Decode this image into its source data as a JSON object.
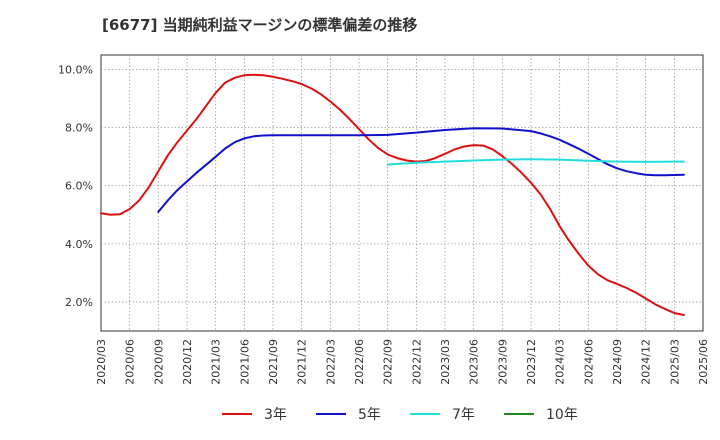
{
  "title": "[6677]  当期純利益マージンの標準偏差の推移",
  "chart_data": {
    "type": "line",
    "title": "[6677]  当期純利益マージンの標準偏差の推移",
    "xlabel": "",
    "ylabel": "",
    "x_ticks": [
      "2020/03",
      "2020/06",
      "2020/09",
      "2020/12",
      "2021/03",
      "2021/06",
      "2021/09",
      "2021/12",
      "2022/03",
      "2022/06",
      "2022/09",
      "2022/12",
      "2023/03",
      "2023/06",
      "2023/09",
      "2023/12",
      "2024/03",
      "2024/06",
      "2024/09",
      "2024/12",
      "2025/03",
      "2025/06"
    ],
    "y_ticks": [
      "2.0%",
      "4.0%",
      "6.0%",
      "8.0%",
      "10.0%"
    ],
    "ylim": [
      1.0,
      10.5
    ],
    "grid": true,
    "legend_position": "bottom",
    "series": [
      {
        "name": "3年",
        "color": "#dd1111",
        "points": [
          [
            "2020/03",
            5.05
          ],
          [
            "2020/04",
            5.0
          ],
          [
            "2020/05",
            5.02
          ],
          [
            "2020/06",
            5.2
          ],
          [
            "2020/07",
            5.5
          ],
          [
            "2020/08",
            5.95
          ],
          [
            "2020/09",
            6.5
          ],
          [
            "2020/10",
            7.05
          ],
          [
            "2020/11",
            7.5
          ],
          [
            "2020/12",
            7.9
          ],
          [
            "2021/01",
            8.3
          ],
          [
            "2021/02",
            8.75
          ],
          [
            "2021/03",
            9.2
          ],
          [
            "2021/04",
            9.55
          ],
          [
            "2021/05",
            9.72
          ],
          [
            "2021/06",
            9.8
          ],
          [
            "2021/07",
            9.82
          ],
          [
            "2021/08",
            9.8
          ],
          [
            "2021/09",
            9.75
          ],
          [
            "2021/10",
            9.68
          ],
          [
            "2021/11",
            9.6
          ],
          [
            "2021/12",
            9.5
          ],
          [
            "2022/01",
            9.35
          ],
          [
            "2022/02",
            9.15
          ],
          [
            "2022/03",
            8.9
          ],
          [
            "2022/04",
            8.62
          ],
          [
            "2022/05",
            8.3
          ],
          [
            "2022/06",
            7.95
          ],
          [
            "2022/07",
            7.6
          ],
          [
            "2022/08",
            7.3
          ],
          [
            "2022/09",
            7.08
          ],
          [
            "2022/10",
            6.95
          ],
          [
            "2022/11",
            6.87
          ],
          [
            "2022/12",
            6.83
          ],
          [
            "2023/01",
            6.85
          ],
          [
            "2023/02",
            6.95
          ],
          [
            "2023/03",
            7.1
          ],
          [
            "2023/04",
            7.25
          ],
          [
            "2023/05",
            7.35
          ],
          [
            "2023/06",
            7.4
          ],
          [
            "2023/07",
            7.38
          ],
          [
            "2023/08",
            7.25
          ],
          [
            "2023/09",
            7.02
          ],
          [
            "2023/10",
            6.75
          ],
          [
            "2023/11",
            6.45
          ],
          [
            "2023/12",
            6.1
          ],
          [
            "2024/01",
            5.7
          ],
          [
            "2024/02",
            5.2
          ],
          [
            "2024/03",
            4.6
          ],
          [
            "2024/04",
            4.1
          ],
          [
            "2024/05",
            3.65
          ],
          [
            "2024/06",
            3.25
          ],
          [
            "2024/07",
            2.95
          ],
          [
            "2024/08",
            2.75
          ],
          [
            "2024/09",
            2.62
          ],
          [
            "2024/10",
            2.48
          ],
          [
            "2024/11",
            2.32
          ],
          [
            "2024/12",
            2.12
          ],
          [
            "2025/01",
            1.92
          ],
          [
            "2025/02",
            1.76
          ],
          [
            "2025/03",
            1.62
          ],
          [
            "2025/04",
            1.55
          ]
        ]
      },
      {
        "name": "5年",
        "color": "#1111cc",
        "points": [
          [
            "2020/09",
            5.1
          ],
          [
            "2020/10",
            5.5
          ],
          [
            "2020/11",
            5.85
          ],
          [
            "2020/12",
            6.15
          ],
          [
            "2021/01",
            6.45
          ],
          [
            "2021/02",
            6.72
          ],
          [
            "2021/03",
            7.0
          ],
          [
            "2021/04",
            7.28
          ],
          [
            "2021/05",
            7.5
          ],
          [
            "2021/06",
            7.63
          ],
          [
            "2021/07",
            7.7
          ],
          [
            "2021/08",
            7.73
          ],
          [
            "2021/09",
            7.74
          ],
          [
            "2021/10",
            7.74
          ],
          [
            "2021/11",
            7.74
          ],
          [
            "2021/12",
            7.74
          ],
          [
            "2022/03",
            7.74
          ],
          [
            "2022/06",
            7.74
          ],
          [
            "2022/09",
            7.75
          ],
          [
            "2022/12",
            7.83
          ],
          [
            "2023/03",
            7.92
          ],
          [
            "2023/06",
            7.98
          ],
          [
            "2023/09",
            7.97
          ],
          [
            "2023/12",
            7.88
          ],
          [
            "2024/01",
            7.8
          ],
          [
            "2024/02",
            7.7
          ],
          [
            "2024/03",
            7.58
          ],
          [
            "2024/04",
            7.43
          ],
          [
            "2024/05",
            7.27
          ],
          [
            "2024/06",
            7.1
          ],
          [
            "2024/07",
            6.92
          ],
          [
            "2024/08",
            6.74
          ],
          [
            "2024/09",
            6.6
          ],
          [
            "2024/10",
            6.5
          ],
          [
            "2024/11",
            6.43
          ],
          [
            "2024/12",
            6.38
          ],
          [
            "2025/01",
            6.36
          ],
          [
            "2025/02",
            6.36
          ],
          [
            "2025/03",
            6.37
          ],
          [
            "2025/04",
            6.38
          ]
        ]
      },
      {
        "name": "7年",
        "color": "#22dddd",
        "points": [
          [
            "2022/09",
            6.73
          ],
          [
            "2022/10",
            6.75
          ],
          [
            "2022/11",
            6.77
          ],
          [
            "2022/12",
            6.79
          ],
          [
            "2023/03",
            6.83
          ],
          [
            "2023/06",
            6.87
          ],
          [
            "2023/09",
            6.9
          ],
          [
            "2023/12",
            6.91
          ],
          [
            "2024/03",
            6.9
          ],
          [
            "2024/06",
            6.86
          ],
          [
            "2024/09",
            6.83
          ],
          [
            "2024/12",
            6.82
          ],
          [
            "2025/03",
            6.83
          ],
          [
            "2025/04",
            6.83
          ]
        ]
      },
      {
        "name": "10年",
        "color": "#228822",
        "points": []
      }
    ]
  }
}
